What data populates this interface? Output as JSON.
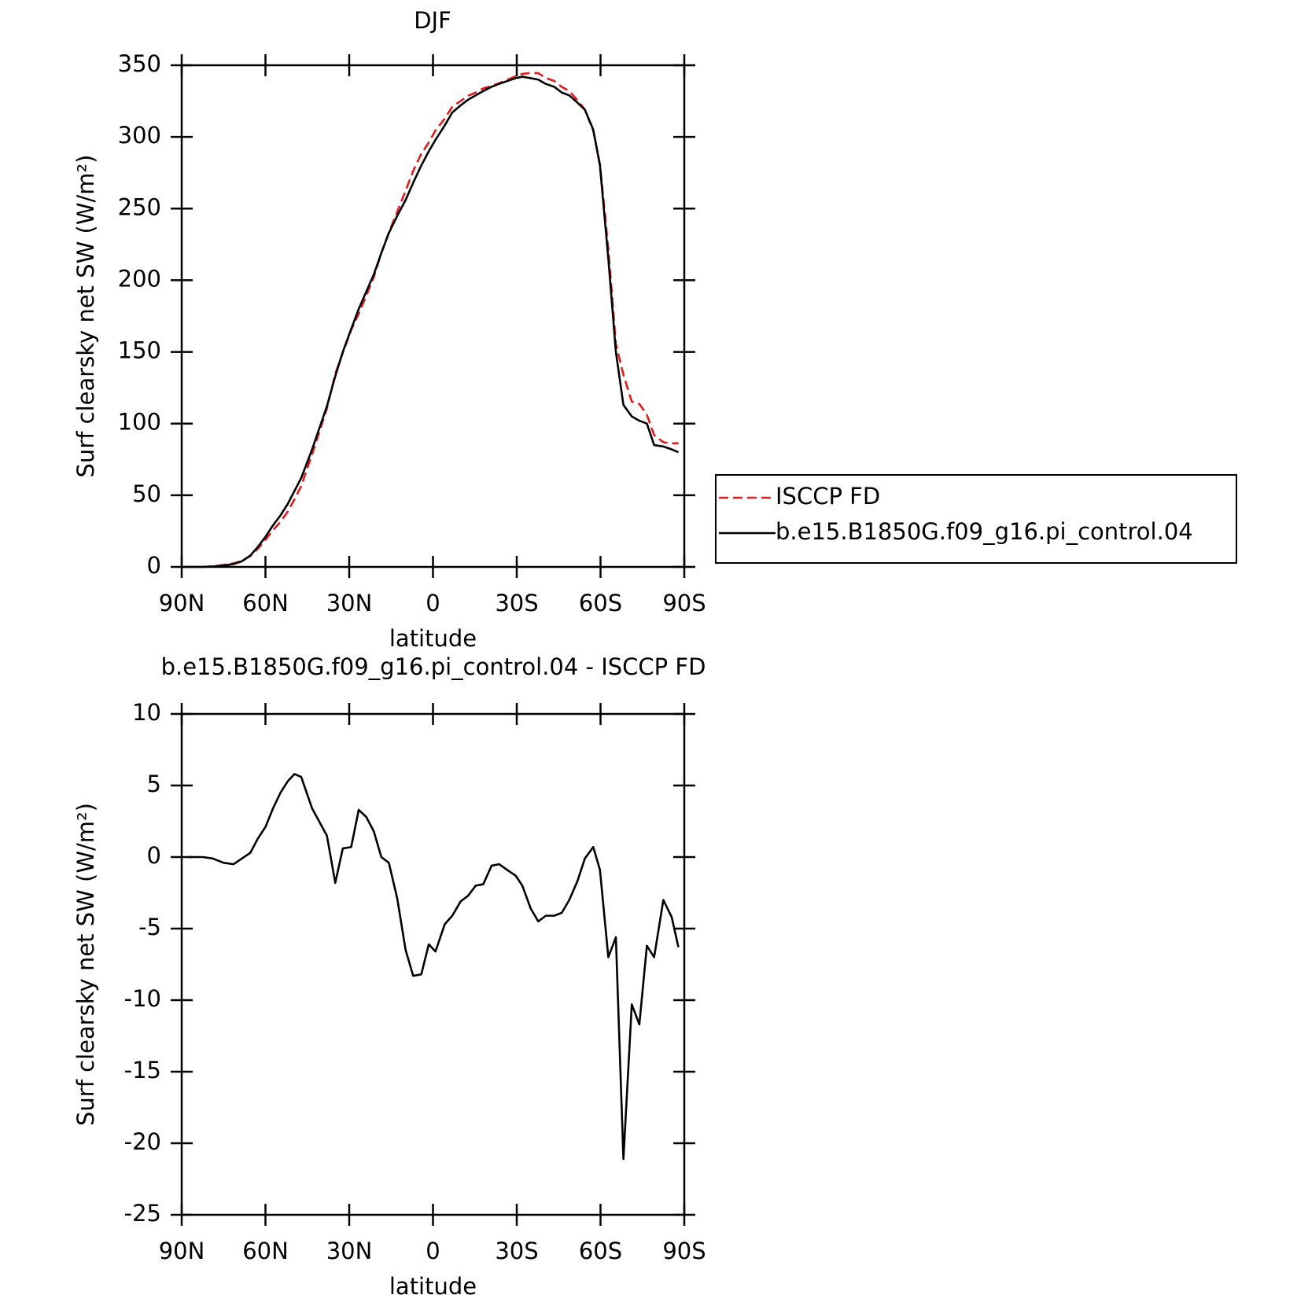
{
  "chart_data": [
    {
      "type": "line",
      "title": "DJF",
      "xlabel": "latitude",
      "ylabel": "Surf clearsky net SW (W/m²)",
      "x": [
        87.6,
        82.5,
        78.9,
        75.0,
        71.4,
        68.4,
        65.4,
        62.7,
        60.0,
        57.3,
        54.6,
        52.0,
        49.6,
        47.2,
        43.3,
        38.0,
        35.0,
        32.3,
        29.3,
        26.6,
        23.9,
        21.2,
        18.5,
        15.8,
        12.8,
        9.8,
        7.1,
        4.2,
        1.5,
        -0.9,
        -4.2,
        -6.9,
        -9.9,
        -12.6,
        -15.3,
        -18.0,
        -21.0,
        -23.7,
        -26.6,
        -29.6,
        -32.0,
        -35.0,
        -37.7,
        -40.4,
        -43.4,
        -46.1,
        -48.8,
        -51.7,
        -54.4,
        -57.4,
        -59.8,
        -62.8,
        -65.5,
        -68.2,
        -71.2,
        -73.9,
        -76.6,
        -79.2,
        -82.5,
        -85.5,
        -87.9
      ],
      "series": [
        {
          "name": "ISCCP FD",
          "color": "#e31a1c",
          "dash": true,
          "values": [
            0,
            0,
            0.4,
            1.4,
            2.5,
            4.1,
            7.7,
            12.7,
            18.9,
            25.6,
            31.5,
            38.7,
            47.2,
            56.4,
            78.6,
            110.5,
            134.8,
            149.4,
            165.3,
            176.7,
            189.2,
            202.2,
            219,
            233.4,
            247.9,
            262.5,
            276.3,
            288.2,
            296.1,
            304.6,
            312.7,
            321.1,
            325.1,
            328.7,
            331,
            333.9,
            335.6,
            337.5,
            339.9,
            342.3,
            344,
            344.6,
            344.5,
            341.1,
            339.1,
            334.9,
            332,
            325.7,
            319.1,
            304.3,
            280.9,
            222,
            155.6,
            134.1,
            115.3,
            113.7,
            106.2,
            92,
            87,
            86.2,
            86.3
          ]
        },
        {
          "name": "b.e15.B1850G.f09_g16.pi_control.04",
          "color": "#000000",
          "dash": false,
          "values": [
            0,
            0,
            0.3,
            1,
            2,
            4,
            8,
            14,
            21,
            29,
            36,
            44,
            53,
            62,
            82,
            112,
            133,
            150,
            166,
            180,
            192,
            204,
            219,
            233,
            245,
            256,
            268,
            280,
            290,
            298,
            308,
            317,
            322,
            326,
            329,
            332,
            335,
            337,
            339,
            341,
            342,
            341,
            340,
            337,
            335,
            331,
            329,
            324,
            319,
            305,
            280,
            215,
            150,
            113,
            105,
            102,
            100,
            85,
            84,
            82,
            80
          ]
        }
      ],
      "xlim": [
        90,
        -90
      ],
      "xticks": [
        {
          "value": 90,
          "label": "90N"
        },
        {
          "value": 60,
          "label": "60N"
        },
        {
          "value": 30,
          "label": "30N"
        },
        0,
        {
          "value": -30,
          "label": "30S"
        },
        {
          "value": -60,
          "label": "60S"
        },
        {
          "value": -90,
          "label": "90S"
        }
      ],
      "ylim": [
        0,
        350
      ],
      "yticks": [
        0,
        50,
        100,
        150,
        200,
        250,
        300,
        350
      ],
      "legend": true
    },
    {
      "type": "line",
      "title": "b.e15.B1850G.f09_g16.pi_control.04 - ISCCP FD",
      "xlabel": "latitude",
      "ylabel": "Surf clearsky net SW (W/m²)",
      "x": [
        87.6,
        82.5,
        78.9,
        75.0,
        71.4,
        68.4,
        65.4,
        62.7,
        60.0,
        57.3,
        54.6,
        52.0,
        49.6,
        47.2,
        43.3,
        38.0,
        35.0,
        32.3,
        29.3,
        26.6,
        23.9,
        21.2,
        18.5,
        15.8,
        12.8,
        9.8,
        7.1,
        4.2,
        1.5,
        -0.9,
        -4.2,
        -6.9,
        -9.9,
        -12.6,
        -15.3,
        -18.0,
        -21.0,
        -23.7,
        -26.6,
        -29.6,
        -32.0,
        -35.0,
        -37.7,
        -40.4,
        -43.4,
        -46.1,
        -48.8,
        -51.7,
        -54.4,
        -57.4,
        -59.8,
        -62.8,
        -65.5,
        -68.2,
        -71.2,
        -73.9,
        -76.6,
        -79.2,
        -82.5,
        -85.5,
        -87.9
      ],
      "values": [
        0,
        0,
        -0.1,
        -0.4,
        -0.5,
        -0.1,
        0.3,
        1.3,
        2.1,
        3.4,
        4.5,
        5.3,
        5.8,
        5.6,
        3.4,
        1.5,
        -1.8,
        0.6,
        0.7,
        3.3,
        2.8,
        1.8,
        0,
        -0.4,
        -2.9,
        -6.5,
        -8.3,
        -8.2,
        -6.1,
        -6.6,
        -4.7,
        -4.1,
        -3.1,
        -2.7,
        -2,
        -1.9,
        -0.6,
        -0.5,
        -0.9,
        -1.3,
        -2,
        -3.6,
        -4.5,
        -4.1,
        -4.1,
        -3.9,
        -3,
        -1.7,
        -0.1,
        0.7,
        -0.9,
        -7,
        -5.6,
        -21.1,
        -10.3,
        -11.7,
        -6.2,
        -7,
        -3,
        -4.2,
        -6.3
      ],
      "color": "#000000",
      "xlim": [
        90,
        -90
      ],
      "xticks": [
        {
          "value": 90,
          "label": "90N"
        },
        {
          "value": 60,
          "label": "60N"
        },
        {
          "value": 30,
          "label": "30N"
        },
        0,
        {
          "value": -30,
          "label": "30S"
        },
        {
          "value": -60,
          "label": "60S"
        },
        {
          "value": -90,
          "label": "90S"
        }
      ],
      "ylim": [
        -25,
        10
      ],
      "yticks": [
        -25,
        -20,
        -15,
        -10,
        -5,
        0,
        5,
        10
      ],
      "legend": false
    }
  ]
}
